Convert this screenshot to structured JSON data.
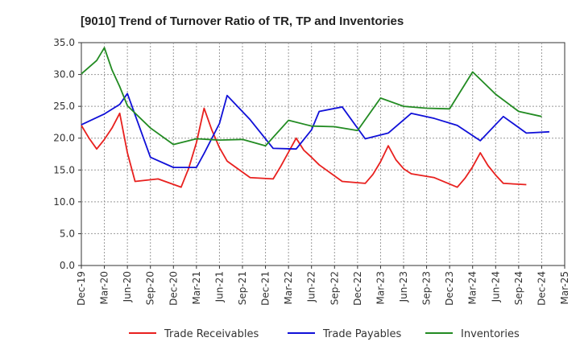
{
  "chart_data": {
    "type": "line",
    "title": "[9010]  Trend of Turnover Ratio of TR, TP and Inventories",
    "xlabel": "",
    "ylabel": "",
    "ylim": [
      0,
      35
    ],
    "y_ticks": [
      "0.0",
      "5.0",
      "10.0",
      "15.0",
      "20.0",
      "25.0",
      "30.0",
      "35.0"
    ],
    "x_tick_labels": [
      "Dec-19",
      "Mar-20",
      "Jun-20",
      "Sep-20",
      "Dec-20",
      "Mar-21",
      "Jun-21",
      "Sep-21",
      "Dec-21",
      "Mar-22",
      "Jun-22",
      "Sep-22",
      "Dec-22",
      "Mar-23",
      "Jun-23",
      "Sep-23",
      "Dec-23",
      "Mar-24",
      "Jun-24",
      "Sep-24",
      "Dec-24",
      "Mar-25"
    ],
    "grid": true,
    "legend_position": "bottom",
    "series": [
      {
        "name": "Trade Receivables",
        "color": "#e8201e",
        "points": [
          [
            0,
            22.0
          ],
          [
            1,
            20.0
          ],
          [
            2,
            18.3
          ],
          [
            3,
            19.8
          ],
          [
            4,
            21.6
          ],
          [
            5,
            23.9
          ],
          [
            6,
            17.7
          ],
          [
            7,
            13.2
          ],
          [
            10,
            13.6
          ],
          [
            13,
            12.3
          ],
          [
            14,
            15.3
          ],
          [
            15,
            19.3
          ],
          [
            16,
            24.7
          ],
          [
            17,
            21.3
          ],
          [
            18,
            18.5
          ],
          [
            19,
            16.4
          ],
          [
            22,
            13.8
          ],
          [
            25,
            13.6
          ],
          [
            26,
            15.6
          ],
          [
            27,
            17.8
          ],
          [
            28,
            20.0
          ],
          [
            29,
            18.1
          ],
          [
            30,
            17.0
          ],
          [
            31,
            15.8
          ],
          [
            34,
            13.2
          ],
          [
            37,
            12.9
          ],
          [
            38,
            14.3
          ],
          [
            39,
            16.3
          ],
          [
            40,
            18.8
          ],
          [
            41,
            16.6
          ],
          [
            42,
            15.2
          ],
          [
            43,
            14.4
          ],
          [
            46,
            13.8
          ],
          [
            49,
            12.3
          ],
          [
            50,
            13.7
          ],
          [
            51,
            15.5
          ],
          [
            52,
            17.7
          ],
          [
            53,
            15.7
          ],
          [
            54,
            14.2
          ],
          [
            55,
            12.9
          ],
          [
            58,
            12.7
          ]
        ]
      },
      {
        "name": "Trade Payables",
        "color": "#1010d8",
        "points": [
          [
            0,
            22.1
          ],
          [
            3,
            23.8
          ],
          [
            5,
            25.3
          ],
          [
            6,
            27.0
          ],
          [
            9,
            17.0
          ],
          [
            12,
            15.4
          ],
          [
            15,
            15.4
          ],
          [
            16,
            17.6
          ],
          [
            18,
            22.3
          ],
          [
            19,
            26.7
          ],
          [
            22,
            22.9
          ],
          [
            25,
            18.4
          ],
          [
            28,
            18.3
          ],
          [
            30,
            21.3
          ],
          [
            31,
            24.2
          ],
          [
            34,
            24.9
          ],
          [
            37,
            19.9
          ],
          [
            40,
            20.8
          ],
          [
            43,
            23.9
          ],
          [
            46,
            23.1
          ],
          [
            49,
            22.0
          ],
          [
            52,
            19.6
          ],
          [
            55,
            23.4
          ],
          [
            58,
            20.8
          ],
          [
            61,
            21.0
          ]
        ]
      },
      {
        "name": "Inventories",
        "color": "#228b22",
        "points": [
          [
            0,
            30.1
          ],
          [
            2,
            32.2
          ],
          [
            3,
            34.2
          ],
          [
            4,
            30.7
          ],
          [
            5,
            28.1
          ],
          [
            6,
            25.1
          ],
          [
            9,
            21.6
          ],
          [
            12,
            19.0
          ],
          [
            15,
            19.9
          ],
          [
            18,
            19.7
          ],
          [
            21,
            19.8
          ],
          [
            24,
            18.8
          ],
          [
            27,
            22.8
          ],
          [
            30,
            21.9
          ],
          [
            33,
            21.8
          ],
          [
            36,
            21.2
          ],
          [
            39,
            26.3
          ],
          [
            42,
            25.0
          ],
          [
            45,
            24.7
          ],
          [
            48,
            24.6
          ],
          [
            51,
            30.4
          ],
          [
            54,
            26.9
          ],
          [
            57,
            24.2
          ],
          [
            60,
            23.4
          ]
        ]
      }
    ]
  }
}
